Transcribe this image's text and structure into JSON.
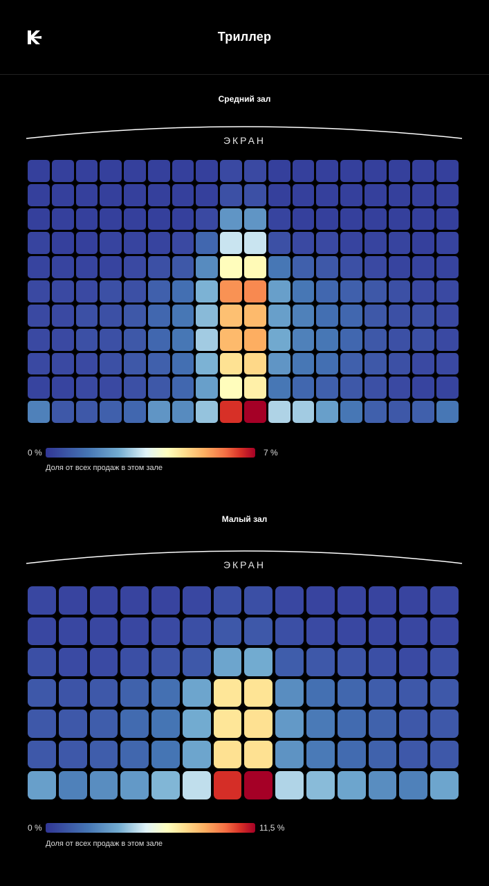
{
  "header": {
    "title": "Триллер",
    "logo_icon": "kinopoisk-logo-icon"
  },
  "colors": {
    "background": "#000000",
    "scale": [
      "#313695",
      "#4575b4",
      "#74add1",
      "#e0f3f8",
      "#ffffbf",
      "#fee090",
      "#fdae61",
      "#f46d43",
      "#d73027",
      "#a50026"
    ]
  },
  "chart_data": [
    {
      "type": "heatmap",
      "title": "Средний зал",
      "screen_label": "ЭКРАН",
      "rows": 11,
      "cols": 18,
      "value_unit": "%",
      "legend": {
        "min_label": "0 %",
        "max_label": "7 %",
        "min": 0,
        "max": 7,
        "caption": "Доля от всех продаж в этом зале"
      },
      "values": [
        [
          0.2,
          0.2,
          0.2,
          0.2,
          0.2,
          0.2,
          0.2,
          0.2,
          0.4,
          0.4,
          0.2,
          0.2,
          0.2,
          0.2,
          0.2,
          0.2,
          0.2,
          0.2
        ],
        [
          0.2,
          0.2,
          0.2,
          0.2,
          0.2,
          0.2,
          0.2,
          0.2,
          0.5,
          0.5,
          0.2,
          0.2,
          0.2,
          0.2,
          0.2,
          0.2,
          0.2,
          0.2
        ],
        [
          0.2,
          0.2,
          0.2,
          0.2,
          0.2,
          0.2,
          0.2,
          0.4,
          1.3,
          1.3,
          0.3,
          0.2,
          0.2,
          0.2,
          0.2,
          0.2,
          0.2,
          0.2
        ],
        [
          0.3,
          0.2,
          0.2,
          0.3,
          0.3,
          0.3,
          0.4,
          0.8,
          2.2,
          2.2,
          0.5,
          0.4,
          0.4,
          0.3,
          0.3,
          0.3,
          0.2,
          0.3
        ],
        [
          0.3,
          0.3,
          0.3,
          0.3,
          0.4,
          0.5,
          0.6,
          1.2,
          3.2,
          3.3,
          1.0,
          0.7,
          0.6,
          0.5,
          0.4,
          0.3,
          0.3,
          0.3
        ],
        [
          0.4,
          0.4,
          0.4,
          0.5,
          0.5,
          0.7,
          0.9,
          1.6,
          5.2,
          5.3,
          1.4,
          1.0,
          0.8,
          0.7,
          0.6,
          0.5,
          0.4,
          0.4
        ],
        [
          0.4,
          0.4,
          0.5,
          0.5,
          0.6,
          0.8,
          1.0,
          1.7,
          4.6,
          4.7,
          1.4,
          1.1,
          0.9,
          0.8,
          0.6,
          0.5,
          0.5,
          0.4
        ],
        [
          0.4,
          0.4,
          0.5,
          0.5,
          0.6,
          0.8,
          1.0,
          1.9,
          4.7,
          4.9,
          1.5,
          1.1,
          1.0,
          0.8,
          0.6,
          0.5,
          0.5,
          0.4
        ],
        [
          0.4,
          0.4,
          0.4,
          0.5,
          0.6,
          0.7,
          0.9,
          1.6,
          4.0,
          4.2,
          1.3,
          1.0,
          0.9,
          0.7,
          0.6,
          0.5,
          0.4,
          0.4
        ],
        [
          0.3,
          0.3,
          0.4,
          0.4,
          0.5,
          0.6,
          0.8,
          1.4,
          3.2,
          3.6,
          1.0,
          0.8,
          0.7,
          0.6,
          0.5,
          0.4,
          0.3,
          0.3
        ],
        [
          1.1,
          0.6,
          0.6,
          0.7,
          0.8,
          1.3,
          1.2,
          1.8,
          6.3,
          7.0,
          2.0,
          1.9,
          1.4,
          1.0,
          0.7,
          0.6,
          0.7,
          1.0
        ]
      ]
    },
    {
      "type": "heatmap",
      "title": "Малый зал",
      "screen_label": "ЭКРАН",
      "rows": 7,
      "cols": 14,
      "value_unit": "%",
      "legend": {
        "min_label": "0 %",
        "max_label": "11,5 %",
        "min": 0,
        "max": 11.5,
        "caption": "Доля от всех продаж в этом зале"
      },
      "values": [
        [
          0.6,
          0.5,
          0.5,
          0.5,
          0.5,
          0.6,
          0.8,
          0.8,
          0.6,
          0.5,
          0.5,
          0.5,
          0.5,
          0.6
        ],
        [
          0.6,
          0.6,
          0.6,
          0.6,
          0.7,
          0.8,
          1.0,
          1.0,
          0.8,
          0.7,
          0.6,
          0.6,
          0.6,
          0.6
        ],
        [
          0.8,
          0.7,
          0.7,
          0.8,
          0.9,
          1.0,
          2.4,
          2.5,
          1.1,
          1.0,
          0.9,
          0.8,
          0.7,
          0.8
        ],
        [
          1.0,
          0.9,
          1.0,
          1.2,
          1.5,
          2.4,
          6.4,
          6.5,
          2.0,
          1.5,
          1.3,
          1.1,
          1.0,
          1.0
        ],
        [
          1.0,
          1.0,
          1.1,
          1.4,
          1.6,
          2.5,
          6.4,
          6.6,
          2.2,
          1.7,
          1.4,
          1.2,
          1.0,
          1.0
        ],
        [
          1.0,
          1.0,
          1.1,
          1.3,
          1.6,
          2.4,
          6.6,
          6.6,
          2.1,
          1.7,
          1.4,
          1.2,
          1.0,
          1.0
        ],
        [
          2.3,
          1.8,
          2.0,
          2.2,
          2.7,
          3.5,
          10.4,
          11.5,
          3.3,
          2.8,
          2.4,
          2.0,
          1.8,
          2.4
        ]
      ]
    }
  ]
}
